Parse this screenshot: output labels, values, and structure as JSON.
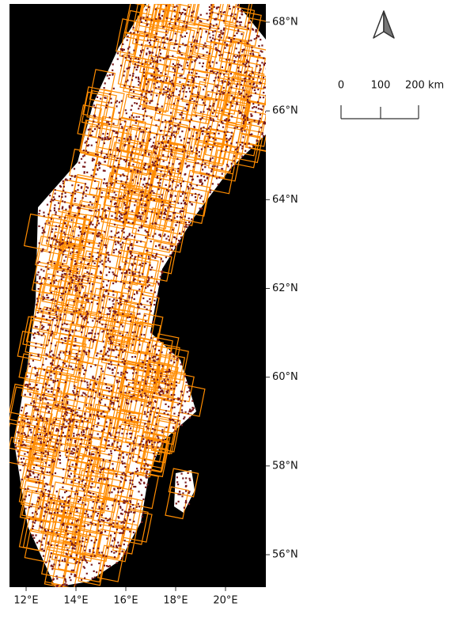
{
  "map": {
    "lat_ticks": [
      {
        "value": 68,
        "label": "68°N"
      },
      {
        "value": 66,
        "label": "66°N"
      },
      {
        "value": 64,
        "label": "64°N"
      },
      {
        "value": 62,
        "label": "62°N"
      },
      {
        "value": 60,
        "label": "60°N"
      },
      {
        "value": 58,
        "label": "58°N"
      },
      {
        "value": 56,
        "label": "56°N"
      }
    ],
    "lon_ticks": [
      {
        "value": 12,
        "label": "12°E"
      },
      {
        "value": 14,
        "label": "14°E"
      },
      {
        "value": 16,
        "label": "16°E"
      },
      {
        "value": 18,
        "label": "18°E"
      },
      {
        "value": 20,
        "label": "20°E"
      }
    ],
    "scale_bar": {
      "labels": [
        "0",
        "100",
        "200 km"
      ]
    }
  }
}
